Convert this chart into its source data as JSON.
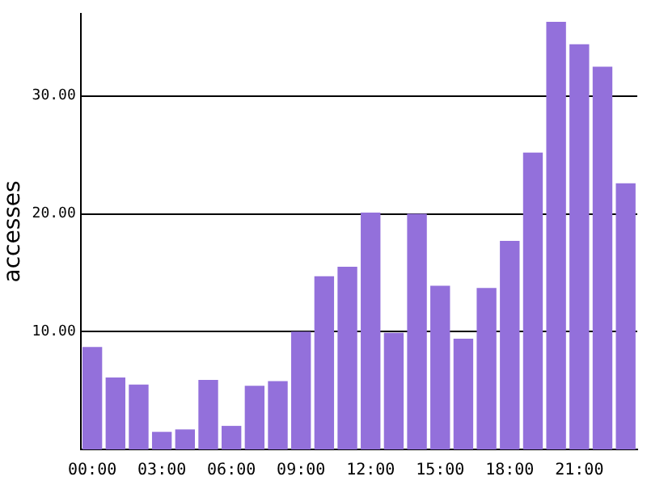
{
  "chart_data": {
    "type": "bar",
    "ylabel": "accesses",
    "categories": [
      "00:00",
      null,
      null,
      "03:00",
      null,
      null,
      "06:00",
      null,
      null,
      "09:00",
      null,
      null,
      "12:00",
      null,
      null,
      "15:00",
      null,
      null,
      "18:00",
      null,
      null,
      "21:00",
      null,
      null
    ],
    "values": [
      8.7,
      6.1,
      5.5,
      1.5,
      1.7,
      5.9,
      2.0,
      5.4,
      5.8,
      10.0,
      14.7,
      15.5,
      20.1,
      9.9,
      20.0,
      13.9,
      9.4,
      13.7,
      17.7,
      25.2,
      36.3,
      34.4,
      32.5,
      22.6
    ],
    "color": "#9370db",
    "ylim": [
      0,
      37
    ],
    "yticks": [
      {
        "value": 10,
        "label": "10.00"
      },
      {
        "value": 20,
        "label": "20.00"
      },
      {
        "value": 30,
        "label": "30.00"
      }
    ],
    "grid": "y",
    "legend": false
  }
}
